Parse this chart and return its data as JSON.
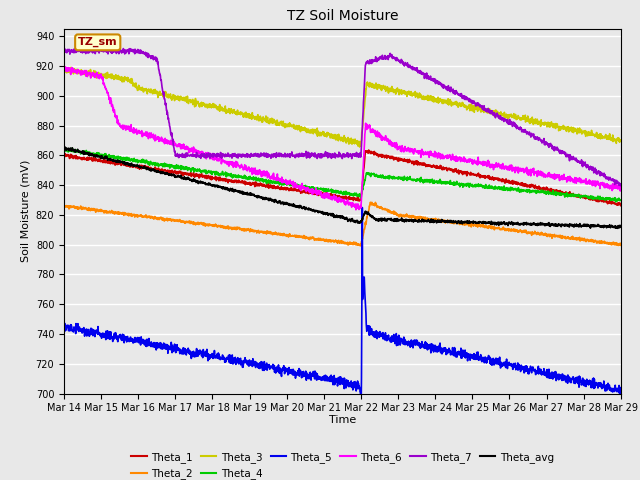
{
  "title": "TZ Soil Moisture",
  "xlabel": "Time",
  "ylabel": "Soil Moisture (mV)",
  "ylim": [
    700,
    945
  ],
  "yticks": [
    700,
    720,
    740,
    760,
    780,
    800,
    820,
    840,
    860,
    880,
    900,
    920,
    940
  ],
  "x_labels": [
    "Mar 14",
    "Mar 15",
    "Mar 16",
    "Mar 17",
    "Mar 18",
    "Mar 19",
    "Mar 20",
    "Mar 21",
    "Mar 22",
    "Mar 23",
    "Mar 24",
    "Mar 25",
    "Mar 26",
    "Mar 27",
    "Mar 28",
    "Mar 29"
  ],
  "colors": {
    "Theta_1": "#cc0000",
    "Theta_2": "#ff8800",
    "Theta_3": "#cccc00",
    "Theta_4": "#00cc00",
    "Theta_5": "#0000ee",
    "Theta_6": "#ff00ff",
    "Theta_7": "#9900cc",
    "Theta_avg": "#000000"
  },
  "annotation_text": "TZ_sm",
  "annotation_bg": "#ffffcc",
  "annotation_border": "#cc8800",
  "fig_bg": "#e8e8e8",
  "plot_bg": "#e8e8e8",
  "grid_color": "#ffffff",
  "linewidth": 1.2
}
